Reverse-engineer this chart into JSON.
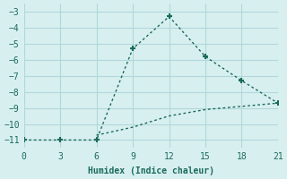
{
  "xlabel": "Humidex (Indice chaleur)",
  "line1_x": [
    0,
    3,
    6,
    9,
    12,
    15,
    18,
    21
  ],
  "line1_y": [
    -11,
    -11,
    -11,
    -5.3,
    -3.3,
    -5.8,
    -7.3,
    -8.7
  ],
  "line2_x": [
    6,
    9,
    12,
    15,
    18,
    21
  ],
  "line2_y": [
    -10.7,
    -10.2,
    -9.5,
    -9.1,
    -8.9,
    -8.7
  ],
  "line_color": "#1a6b5a",
  "bg_color": "#d8eff0",
  "grid_color": "#b0d8da",
  "tick_color": "#1a6b5a",
  "xlim": [
    0,
    21
  ],
  "ylim": [
    -11.5,
    -2.5
  ],
  "xticks": [
    0,
    3,
    6,
    9,
    12,
    15,
    18,
    21
  ],
  "yticks": [
    -11,
    -10,
    -9,
    -8,
    -7,
    -6,
    -5,
    -4,
    -3
  ],
  "marker": "+"
}
